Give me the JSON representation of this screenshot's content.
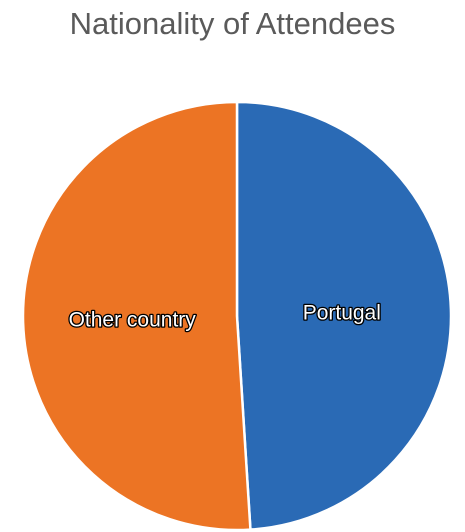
{
  "chart_data": {
    "type": "pie",
    "title": "Nationality of Attendees",
    "categories": [
      "Portugal",
      "Other country"
    ],
    "values": [
      49,
      51
    ],
    "colors": [
      "#2a6ab5",
      "#ec7424"
    ],
    "legend": "none",
    "data_labels": "category name inside slice"
  }
}
